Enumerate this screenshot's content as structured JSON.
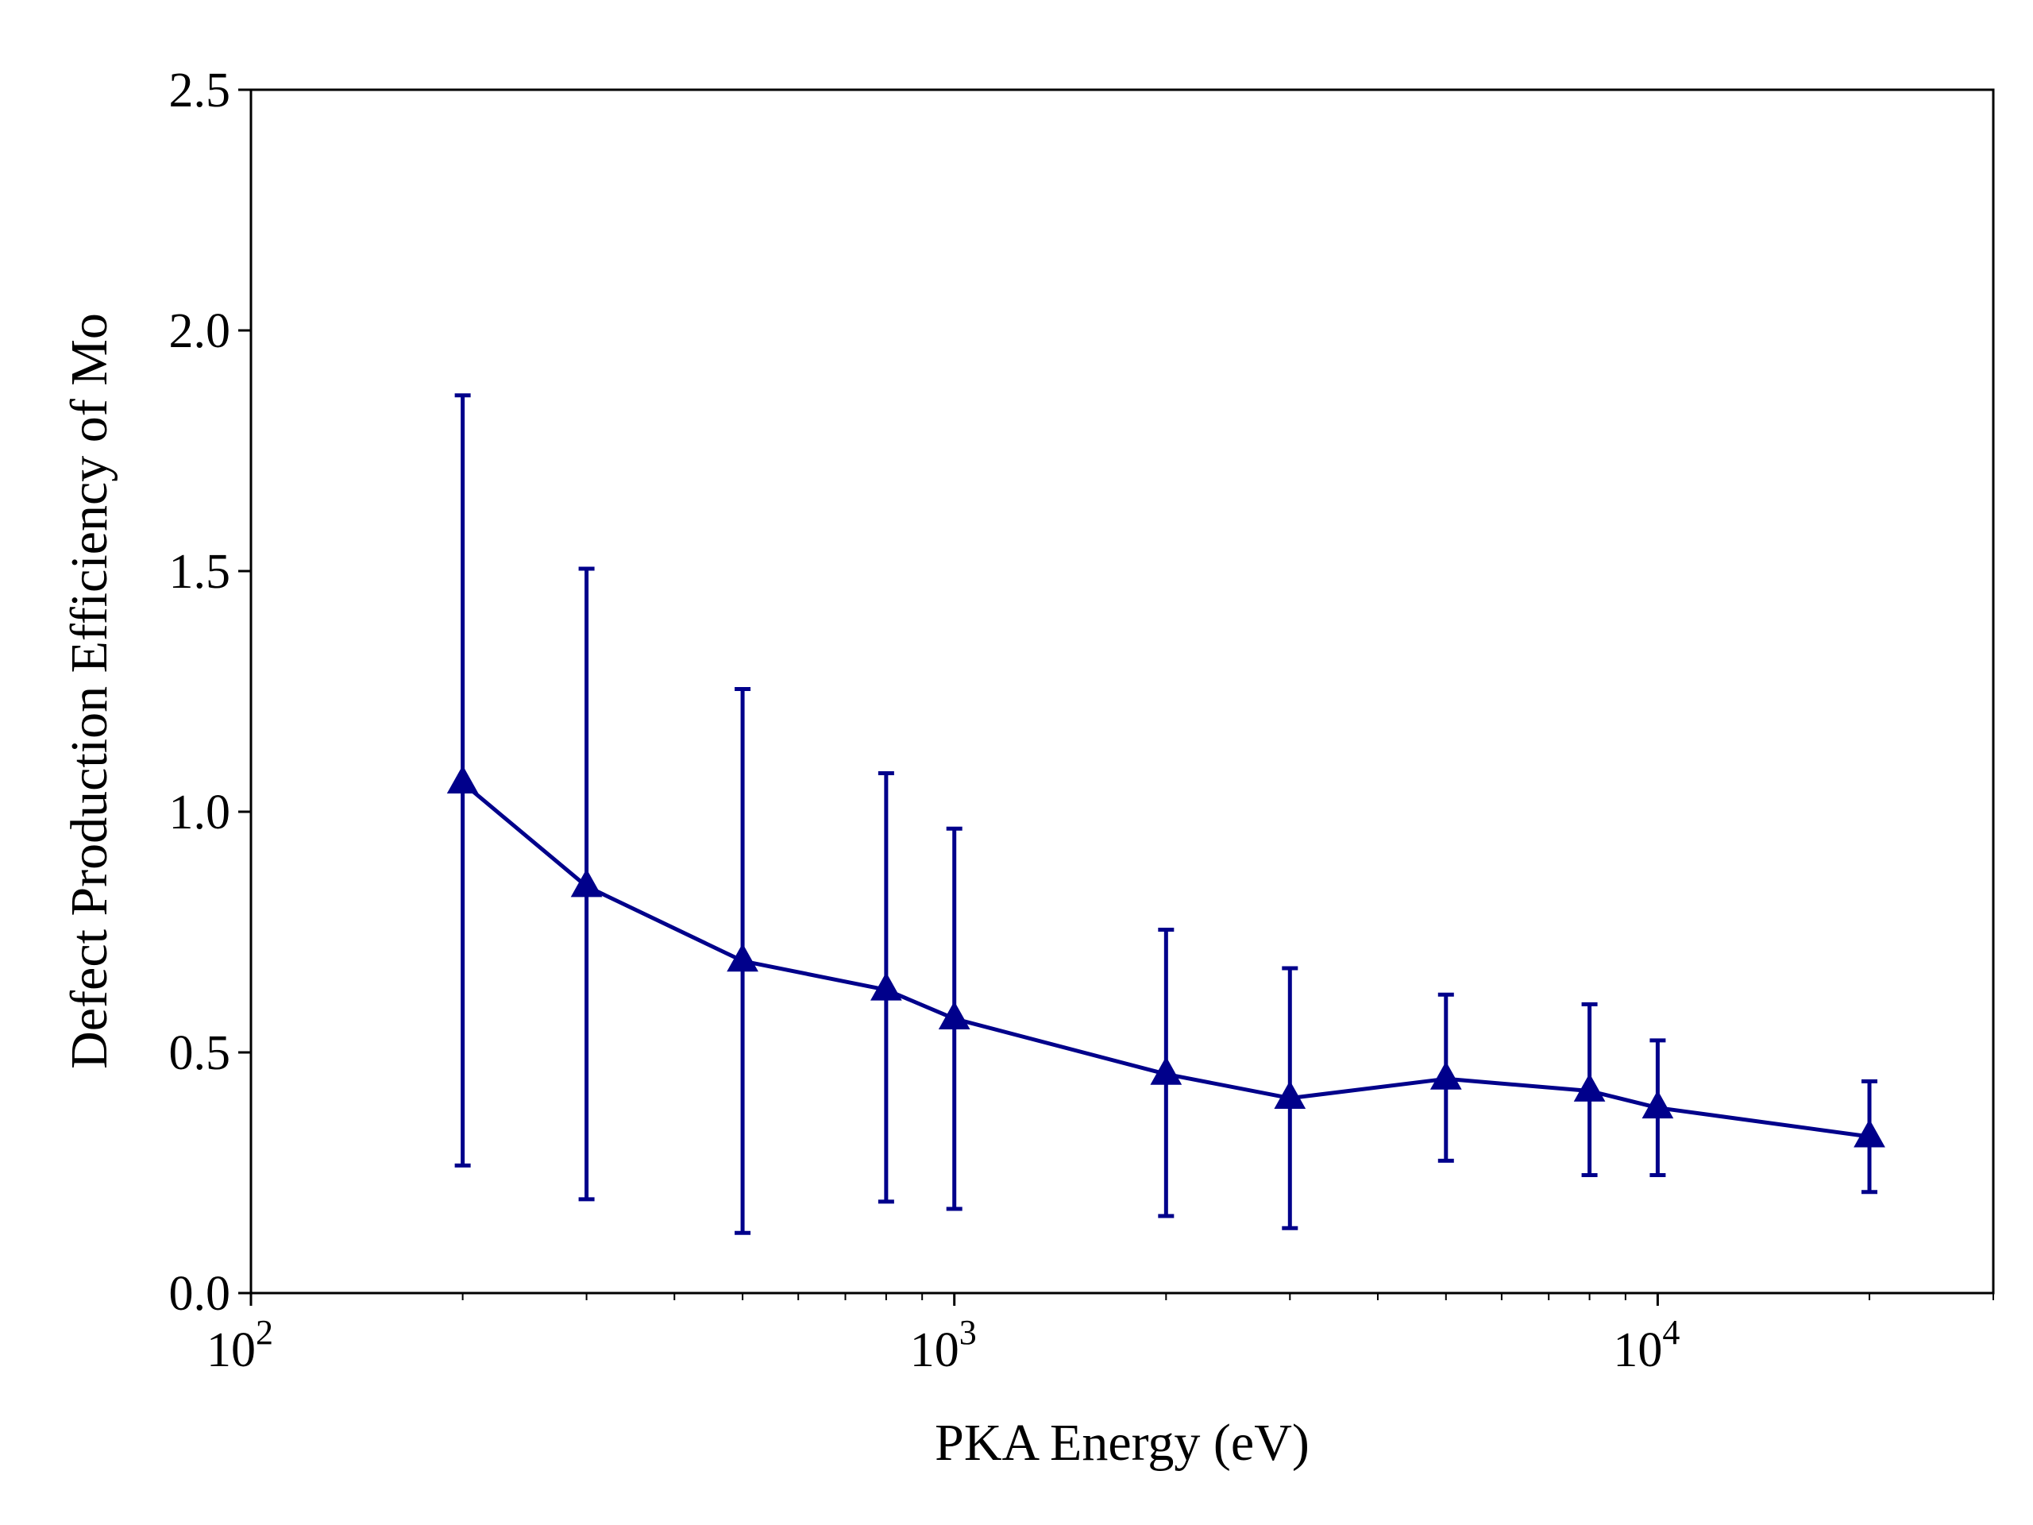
{
  "chart_data": {
    "type": "line",
    "title": "",
    "xlabel": "PKA Energy (eV)",
    "ylabel": "Defect Production Efficiency of Mo",
    "xscale": "log",
    "xlim": [
      100,
      30000
    ],
    "ylim": [
      0,
      2.5
    ],
    "grid": false,
    "legend": "none",
    "marker": "triangle-up",
    "color": "#00008b",
    "x_ticks": [
      {
        "base": "10",
        "exp": "2",
        "value": 100
      },
      {
        "base": "10",
        "exp": "3",
        "value": 1000
      },
      {
        "base": "10",
        "exp": "4",
        "value": 10000
      }
    ],
    "y_ticks": [
      "0.0",
      "0.5",
      "1.0",
      "1.5",
      "2.0",
      "2.5"
    ],
    "series": [
      {
        "x": [
          200,
          300,
          500,
          800,
          1000,
          2000,
          3000,
          5000,
          8000,
          10000,
          20000
        ],
        "y": [
          1.06,
          0.845,
          0.69,
          0.63,
          0.57,
          0.455,
          0.405,
          0.445,
          0.42,
          0.385,
          0.325
        ],
        "err_low": [
          0.265,
          0.195,
          0.125,
          0.19,
          0.175,
          0.16,
          0.135,
          0.275,
          0.245,
          0.245,
          0.21
        ],
        "err_high": [
          1.865,
          1.505,
          1.255,
          1.08,
          0.965,
          0.755,
          0.675,
          0.62,
          0.6,
          0.525,
          0.44
        ]
      }
    ]
  }
}
